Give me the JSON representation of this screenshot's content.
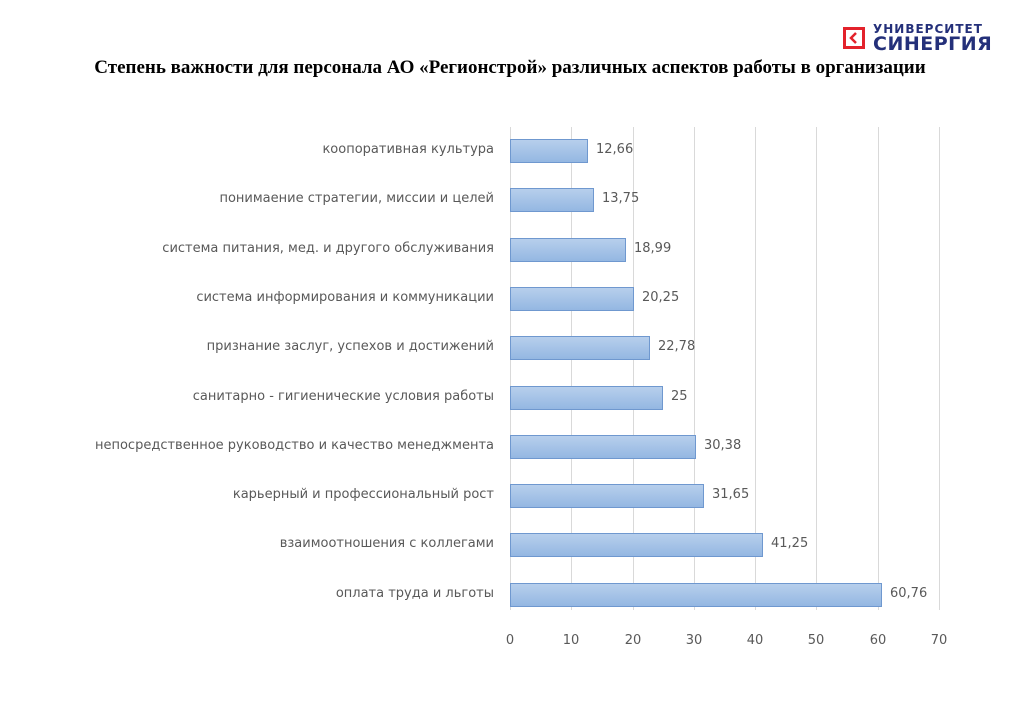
{
  "logo": {
    "line1": "УНИВЕРСИТЕТ",
    "line2": "СИНЕРГИЯ",
    "icon": "chevron-left-box-icon",
    "colors": {
      "red": "#e3222b",
      "navy": "#24307a"
    }
  },
  "title": "Степень важности для персонала АО «Регионстрой» различных аспектов работы в организации",
  "chart_data": {
    "type": "bar",
    "orientation": "horizontal",
    "title": "Степень важности для персонала АО «Регионстрой» различных аспектов работы в организации",
    "xlabel": "",
    "ylabel": "",
    "xlim": [
      0,
      70
    ],
    "x_ticks": [
      "0",
      "10",
      "20",
      "30",
      "40",
      "50",
      "60",
      "70"
    ],
    "grid": true,
    "legend": "none",
    "bar_color": "#a6c3e8",
    "categories": [
      "коопоративная культура",
      "понимаение стратегии, миссии и целей",
      "система питания, мед. и другого обслуживания",
      "система информирования и коммуникации",
      "признание заслуг, успехов и достижений",
      "санитарно - гигиенические условия работы",
      "непосредственное руководство и качество менеджмента",
      "карьерный и профессиональный рост",
      "взаимоотношения с коллегами",
      "оплата труда и льготы"
    ],
    "values": [
      12.66,
      13.75,
      18.99,
      20.25,
      22.78,
      25,
      30.38,
      31.65,
      41.25,
      60.76
    ],
    "value_labels": [
      "12,66",
      "13,75",
      "18,99",
      "20,25",
      "22,78",
      "25",
      "30,38",
      "31,65",
      "41,25",
      "60,76"
    ]
  }
}
